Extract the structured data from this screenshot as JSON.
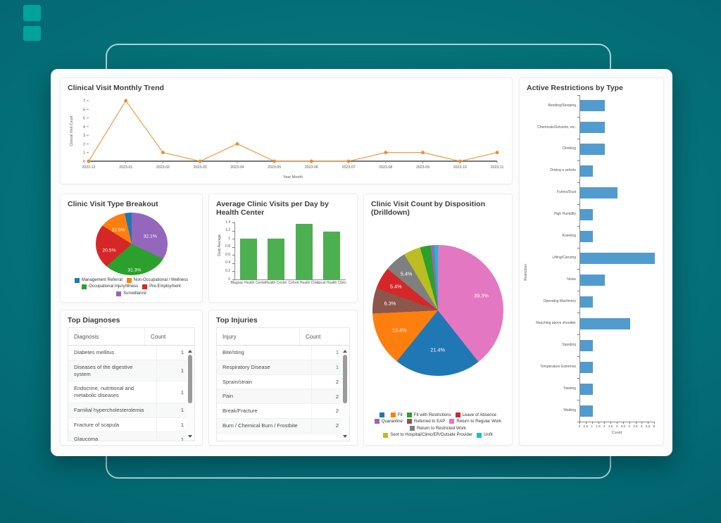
{
  "decor": {
    "outline_color": "#d2eeee",
    "square_color": "#00a39a"
  },
  "theme": {
    "panel_bg": "#ffffff",
    "card_bg": "#fcfcfd",
    "bg_teal_center": "#0b7e83",
    "bg_teal_edge": "#015864",
    "title_color": "#3d3d3d",
    "teal_count_color": "#2e8b8b"
  },
  "chart_data": [
    {
      "id": "trend",
      "type": "line",
      "title": "Clinical Visit Monthly Trend",
      "xlabel": "Year Month",
      "ylabel": "Clinical Visit Count",
      "x": [
        "2022-12",
        "2023-01",
        "2023-02",
        "2023-03",
        "2023-04",
        "2023-05",
        "2023-06",
        "2023-07",
        "2023-08",
        "2023-09",
        "2023-10",
        "2023-11"
      ],
      "y": [
        0,
        7,
        1,
        0,
        2,
        0,
        0,
        0,
        1,
        1,
        0,
        1
      ],
      "ylim": [
        0,
        7
      ],
      "yticks": [
        0,
        1,
        2,
        3,
        4,
        5,
        6,
        7
      ],
      "line_color": "#f2a14c",
      "marker_color": "#ec8b2f",
      "grid": false,
      "legend_position": "none"
    },
    {
      "id": "visit_type",
      "type": "pie",
      "title": "Clinic Visit Type Breakout",
      "slices": [
        {
          "label": "Surveillance",
          "value": 32.1,
          "color": "#9467bd",
          "show_label": true
        },
        {
          "label": "Occupational Injury/Illness",
          "value": 31.3,
          "color": "#2ca02c",
          "show_label": true
        },
        {
          "label": "Pre-Employment",
          "value": 20.5,
          "color": "#d62728",
          "show_label": true
        },
        {
          "label": "Non-Occupational / Wellness",
          "value": 12.5,
          "color": "#ff7f0e",
          "show_label": true
        },
        {
          "label": "Management Referral",
          "value": 3.6,
          "color": "#1f77b4",
          "show_label": false
        }
      ],
      "legend_position": "bottom",
      "legend": [
        {
          "label": "Management Referral",
          "color": "#1f77b4"
        },
        {
          "label": "Non-Occupational / Wellness",
          "color": "#ff7f0e"
        },
        {
          "label": "Occupational Injury/Illness",
          "color": "#2ca02c"
        },
        {
          "label": "Pre-Employment",
          "color": "#d62728"
        },
        {
          "label": "Surveillance",
          "color": "#9467bd"
        }
      ]
    },
    {
      "id": "avg_visits",
      "type": "bar",
      "title": "Average Clinic Visits per Day by Health Center",
      "ylabel": "Daily Average",
      "xlabel": "",
      "categories": [
        "Blagnac Health Center",
        "Health Center",
        "Cohort Health Clinic",
        "Local Health Clinic"
      ],
      "values": [
        1.0,
        1.0,
        1.37,
        1.17
      ],
      "ylim": [
        0,
        1.4
      ],
      "yticks": [
        0,
        0.2,
        0.4,
        0.6,
        0.8,
        1,
        1.2,
        1.4
      ],
      "color": "#4caf50",
      "grid": false
    },
    {
      "id": "disposition",
      "type": "pie",
      "title": "Clinic Visit Count by Disposition (Drilldown)",
      "slices": [
        {
          "label": "Return to Regular Work",
          "value": 39.3,
          "color": "#e377c2",
          "show_label": true,
          "lr": 0.7
        },
        {
          "label": "",
          "value": 21.4,
          "color": "#1f77b4",
          "show_label": true,
          "lr": 0.6
        },
        {
          "label": "Fit",
          "value": 13.4,
          "color": "#ff7f0e",
          "show_label": true,
          "lr": 0.66
        },
        {
          "label": "Referred to EAP",
          "value": 6.3,
          "color": "#8c564b",
          "show_label": true,
          "lr": 0.74
        },
        {
          "label": "Leave of Absence",
          "value": 5.4,
          "color": "#d62728",
          "show_label": true,
          "lr": 0.74
        },
        {
          "label": "Return to Restricted Work",
          "value": 5.4,
          "color": "#7f7f7f",
          "show_label": true,
          "lr": 0.74
        },
        {
          "label": "Sent to Hospital/Clinic/ER/Outside Provider",
          "value": 4.2,
          "color": "#bcbd22",
          "show_label": false
        },
        {
          "label": "Fit with Restrictions",
          "value": 2.6,
          "color": "#2ca02c",
          "show_label": false
        },
        {
          "label": "Quarantine",
          "value": 0.9,
          "color": "#9467bd",
          "show_label": false
        },
        {
          "label": "Unfit",
          "value": 0.9,
          "color": "#17becf",
          "show_label": false
        }
      ],
      "legend_position": "bottom",
      "legend": [
        {
          "label": "",
          "color": "#1f77b4"
        },
        {
          "label": "Fit",
          "color": "#ff7f0e"
        },
        {
          "label": "Fit with Restrictions",
          "color": "#2ca02c"
        },
        {
          "label": "Leave of Absence",
          "color": "#d62728"
        },
        {
          "label": "Quarantine",
          "color": "#9467bd"
        },
        {
          "label": "Referred to EAP",
          "color": "#8c564b"
        },
        {
          "label": "Return to Regular Work",
          "color": "#e377c2"
        },
        {
          "label": "Return to Restricted Work",
          "color": "#7f7f7f"
        },
        {
          "label": "Sent to Hospital/Clinic/ER/Outside Provider",
          "color": "#bcbd22"
        },
        {
          "label": "Unfit",
          "color": "#17becf"
        }
      ]
    },
    {
      "id": "restrictions",
      "type": "hbar",
      "title": "Active Restrictions by Type",
      "xlabel": "Count",
      "ylabel": "Restriction",
      "categories": [
        "Bending/Stooping",
        "Chemicals/Solvents, etc.",
        "Climbing",
        "Driving a vehicle",
        "Fumes/Dust",
        "High Humidity",
        "Kneeling",
        "Lifting/Carrying",
        "Noise",
        "Operating Machinery",
        "Reaching above shoulder",
        "Standing",
        "Temperature Extremes",
        "Twisting",
        "Walking"
      ],
      "values": [
        2,
        2,
        2,
        1,
        3,
        1,
        1,
        6,
        2,
        1,
        4,
        1,
        1,
        1,
        1
      ],
      "xlim": [
        0,
        6
      ],
      "xticks": [
        0,
        0.5,
        1,
        1.5,
        2,
        2.5,
        3,
        3.5,
        4,
        4.5,
        5,
        5.5,
        6
      ],
      "color": "#529bce",
      "grid": false
    }
  ],
  "tables": {
    "diagnoses": {
      "title": "Top Diagnoses",
      "columns": [
        "Diagnosis",
        "Count"
      ],
      "rows": [
        [
          "Diabetes mellitus",
          "1"
        ],
        [
          "Diseases of the digestive system",
          "1"
        ],
        [
          "Endocrine, nutritional and metabolic diseases",
          "1"
        ],
        [
          "Familial hypercholesterolemia",
          "1"
        ],
        [
          "Fracture of scapula",
          "1"
        ],
        [
          "Glaucoma",
          "1"
        ]
      ],
      "teal_count_rows": []
    },
    "injuries": {
      "title": "Top Injuries",
      "columns": [
        "Injury",
        "Count"
      ],
      "rows": [
        [
          "Bite/sting",
          "1"
        ],
        [
          "Respiratory Disease",
          "1"
        ],
        [
          "Sprain/strain",
          "2"
        ],
        [
          "Pain",
          "2"
        ],
        [
          "Break/Fracture",
          "2"
        ],
        [
          "Burn / Chemical Burn / Frostbite",
          "2"
        ]
      ],
      "teal_count_rows": [
        0,
        1
      ]
    }
  }
}
